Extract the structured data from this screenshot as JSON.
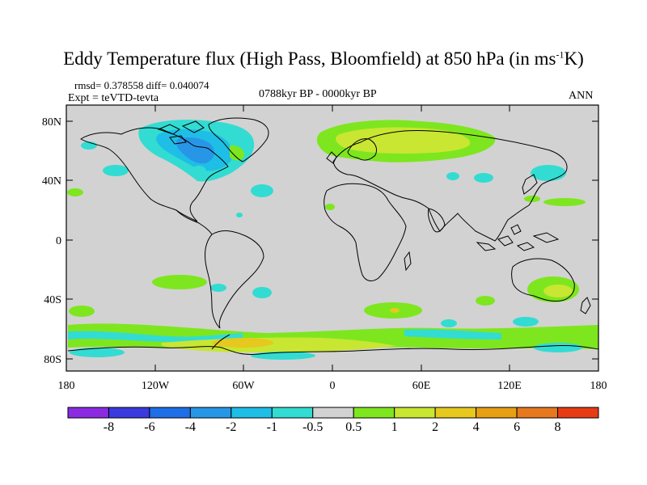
{
  "title": {
    "main": "Eddy Temperature flux (High Pass, Bloomfield) at 850 hPa (in ms",
    "sup": "-1",
    "end": "K)"
  },
  "stats": {
    "rmsd_diff": "rmsd= 0.378558 diff= 0.040074",
    "expt": "Expt = teVTD-tevta",
    "period": "0788kyr BP - 0000kyr BP",
    "season": "ANN"
  },
  "axes": {
    "x_ticks": [
      "180",
      "120W",
      "60W",
      "0",
      "60E",
      "120E",
      "180"
    ],
    "y_ticks": [
      "80N",
      "40N",
      "0",
      "40S",
      "80S"
    ]
  },
  "colorbar": {
    "labels": [
      "-8",
      "-6",
      "-4",
      "-2",
      "-1",
      "-0.5",
      "0.5",
      "1",
      "2",
      "4",
      "6",
      "8"
    ],
    "colors": [
      "#8a2be2",
      "#3a3adf",
      "#1e6ee6",
      "#2896e6",
      "#1ebee6",
      "#32dcd2",
      "#d2d2d2",
      "#7ee61e",
      "#c8e632",
      "#e6c81e",
      "#e6a014",
      "#e6781e",
      "#e63c14"
    ]
  },
  "map": {
    "background": "#d2d2d2",
    "coast_color": "#000000"
  }
}
